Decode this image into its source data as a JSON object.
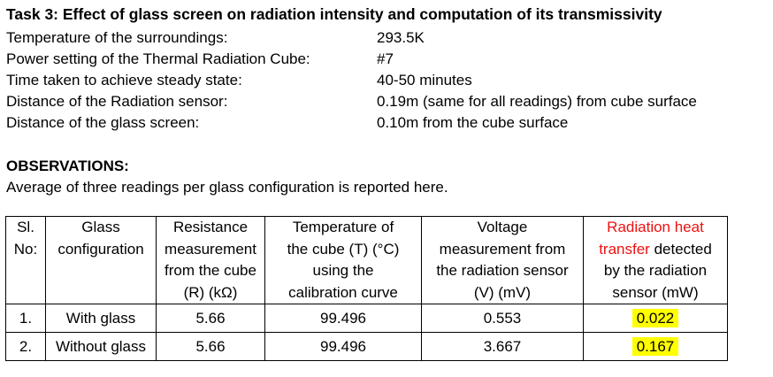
{
  "title": "Task 3: Effect of glass screen on radiation intensity and computation of its transmissivity",
  "info": [
    {
      "label": "Temperature of the surroundings:",
      "value": "293.5K"
    },
    {
      "label": "Power setting of the Thermal Radiation Cube:",
      "value": "#7"
    },
    {
      "label": "Time taken to achieve steady state:",
      "value": "40-50 minutes"
    },
    {
      "label": "Distance of the Radiation sensor:",
      "value": "0.19m (same for all readings) from cube surface"
    },
    {
      "label": "Distance of the glass screen:",
      "value": "0.10m from the cube surface"
    }
  ],
  "observations": {
    "heading": "OBSERVATIONS:",
    "note": "Average of three readings per glass configuration is reported here."
  },
  "table": {
    "headers": {
      "sl": [
        "Sl.",
        "No:"
      ],
      "glass": [
        "Glass",
        "configuration"
      ],
      "resistance": [
        "Resistance",
        "measurement",
        "from the cube",
        "(R) (kΩ)"
      ],
      "temperature": [
        "Temperature of",
        "the cube (T) (°C)",
        "using the",
        "calibration curve"
      ],
      "voltage": [
        "Voltage",
        "measurement from",
        "the radiation sensor",
        "(V) (mV)"
      ],
      "radiation": {
        "red_line1": "Radiation heat",
        "red_line2": "transfer",
        "line2_rest": " detected",
        "line3": "by the radiation",
        "line4": "sensor (mW)"
      }
    },
    "rows": [
      {
        "sl": "1.",
        "glass": "With glass",
        "resistance": "5.66",
        "temperature": "99.496",
        "voltage": "0.553",
        "radiation": "0.022"
      },
      {
        "sl": "2.",
        "glass": "Without glass",
        "resistance": "5.66",
        "temperature": "99.496",
        "voltage": "3.667",
        "radiation": "0.167"
      }
    ],
    "colors": {
      "red_text": "#ee1111",
      "highlight": "#ffff00"
    }
  }
}
